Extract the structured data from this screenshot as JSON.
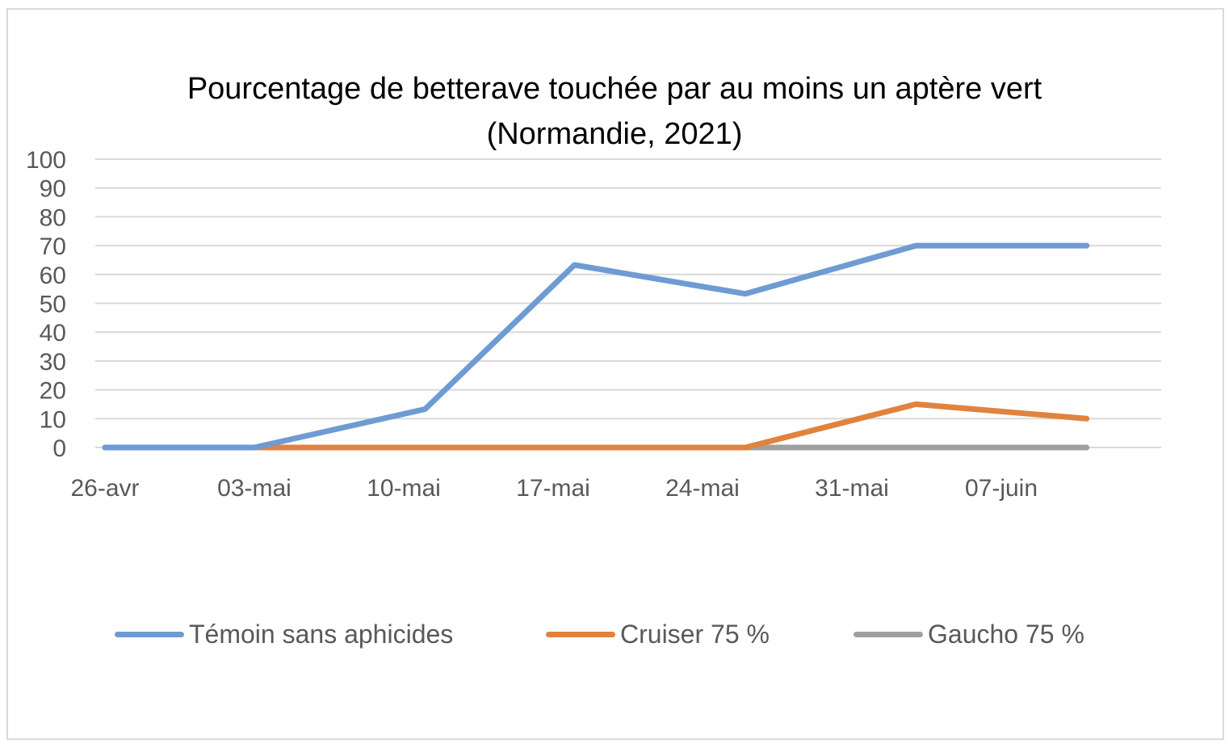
{
  "chart_data": {
    "type": "line",
    "title": "Pourcentage de betterave touchée par au moins un aptère vert",
    "subtitle": "(Normandie, 2021)",
    "xlabel": "",
    "ylabel": "",
    "ylim": [
      0,
      100
    ],
    "yticks": [
      0,
      10,
      20,
      30,
      40,
      50,
      60,
      70,
      80,
      90,
      100
    ],
    "x_axis_type": "date",
    "x_range": [
      "2021-04-26",
      "2021-06-14"
    ],
    "x_tick_labels": [
      {
        "date": "2021-04-26",
        "label": "26-avr"
      },
      {
        "date": "2021-05-03",
        "label": "03-mai"
      },
      {
        "date": "2021-05-10",
        "label": "10-mai"
      },
      {
        "date": "2021-05-17",
        "label": "17-mai"
      },
      {
        "date": "2021-05-24",
        "label": "24-mai"
      },
      {
        "date": "2021-05-31",
        "label": "31-mai"
      },
      {
        "date": "2021-06-07",
        "label": "07-juin"
      }
    ],
    "grid": true,
    "legend": "bottom",
    "series": [
      {
        "name": "Témoin sans aphicides",
        "color": "#6f9bd3",
        "points": [
          {
            "x": "2021-04-26",
            "y": 0
          },
          {
            "x": "2021-05-03",
            "y": 0
          },
          {
            "x": "2021-05-11",
            "y": 13.3
          },
          {
            "x": "2021-05-18",
            "y": 63.3
          },
          {
            "x": "2021-05-26",
            "y": 53.3
          },
          {
            "x": "2021-06-03",
            "y": 70
          },
          {
            "x": "2021-06-11",
            "y": 70
          }
        ]
      },
      {
        "name": "Cruiser 75 %",
        "color": "#e0833e",
        "points": [
          {
            "x": "2021-04-26",
            "y": 0
          },
          {
            "x": "2021-05-03",
            "y": 0
          },
          {
            "x": "2021-05-11",
            "y": 0
          },
          {
            "x": "2021-05-18",
            "y": 0
          },
          {
            "x": "2021-05-26",
            "y": 0
          },
          {
            "x": "2021-06-03",
            "y": 15
          },
          {
            "x": "2021-06-11",
            "y": 10
          }
        ]
      },
      {
        "name": "Gaucho 75 %",
        "color": "#a0a0a0",
        "points": [
          {
            "x": "2021-04-26",
            "y": 0
          },
          {
            "x": "2021-05-03",
            "y": 0
          },
          {
            "x": "2021-05-11",
            "y": 0
          },
          {
            "x": "2021-05-18",
            "y": 0
          },
          {
            "x": "2021-05-26",
            "y": 0
          },
          {
            "x": "2021-06-03",
            "y": 0
          },
          {
            "x": "2021-06-11",
            "y": 0
          }
        ]
      }
    ]
  }
}
